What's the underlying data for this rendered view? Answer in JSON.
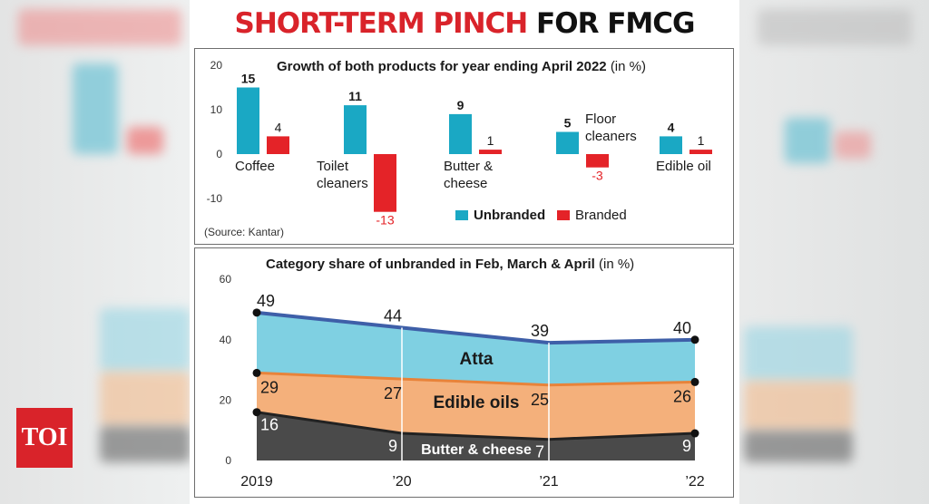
{
  "brand": {
    "logo_text": "TOI"
  },
  "title": {
    "part1": "SHORT-TERM PINCH",
    "part2": "FOR FMCG GIANTS"
  },
  "colors": {
    "unbranded": "#1aa8c4",
    "branded": "#e42328",
    "atta": "#7fd0e2",
    "oils": "#f4b07b",
    "butter": "#4a4a4a",
    "line": "#3e5fa8",
    "title_red": "#d9232a"
  },
  "chart_data": [
    {
      "type": "bar",
      "title": "Growth of both products for year ending April 2022",
      "title_unit": "(in %)",
      "categories": [
        "Coffee",
        "Toilet cleaners",
        "Butter & cheese",
        "Floor cleaners",
        "Edible oil"
      ],
      "category_lines": [
        [
          "Coffee"
        ],
        [
          "Toilet",
          "cleaners"
        ],
        [
          "Butter &",
          "cheese"
        ],
        [
          "Floor",
          "cleaners"
        ],
        [
          "Edible oil"
        ]
      ],
      "series": [
        {
          "name": "Unbranded",
          "values": [
            15,
            11,
            9,
            5,
            4
          ]
        },
        {
          "name": "Branded",
          "values": [
            4,
            -13,
            1,
            -3,
            1
          ]
        }
      ],
      "ylim": [
        -13,
        20
      ],
      "yticks": [
        20,
        10,
        0,
        -10
      ],
      "legend": [
        "Unbranded",
        "Branded"
      ],
      "source": "(Source: Kantar)"
    },
    {
      "type": "area",
      "title": "Category share of unbranded in Feb, March & April",
      "title_unit": "(in %)",
      "x": [
        "2019",
        "’20",
        "’21",
        "’22"
      ],
      "series": [
        {
          "name": "Butter & cheese",
          "values": [
            16,
            9,
            7,
            9
          ]
        },
        {
          "name": "Edible oils",
          "values": [
            29,
            27,
            25,
            26
          ]
        },
        {
          "name": "Atta",
          "values": [
            49,
            44,
            39,
            40
          ]
        }
      ],
      "ylim": [
        0,
        60
      ],
      "yticks": [
        60,
        40,
        20,
        0
      ]
    }
  ]
}
